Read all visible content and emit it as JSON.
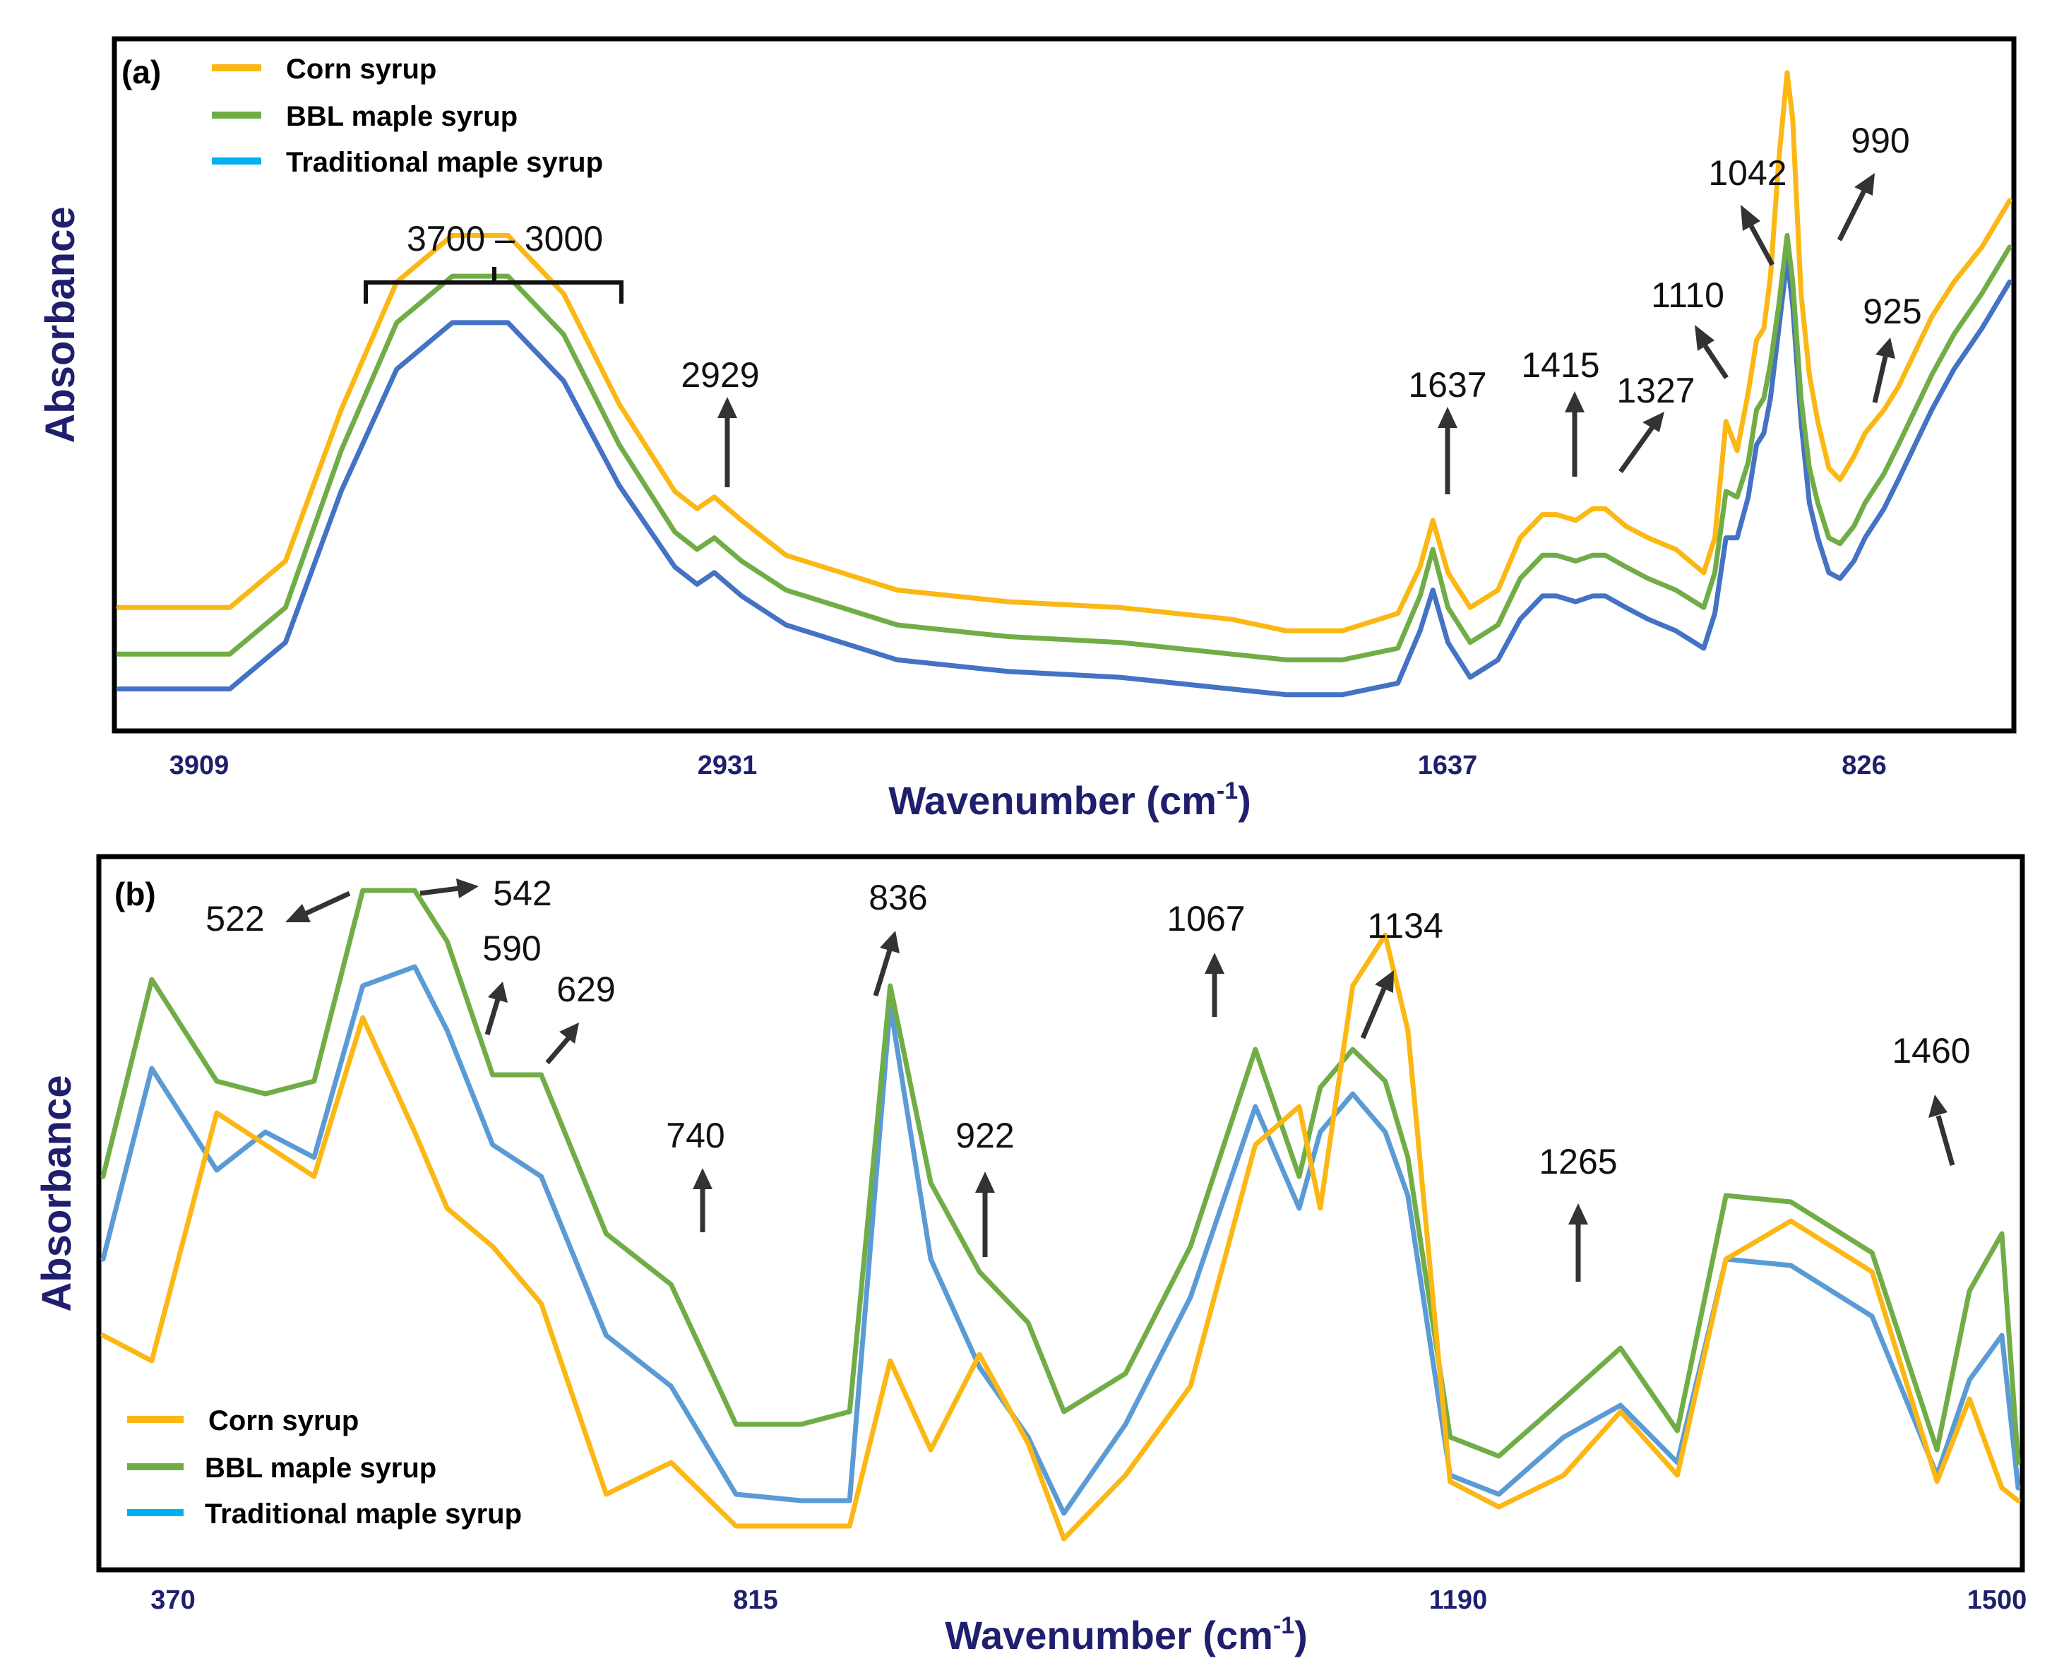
{
  "colors": {
    "corn": "#fbb714",
    "bbl": "#70ad47",
    "traditional_line_a": "#4472c4",
    "traditional_line_b": "#5b9bd5",
    "traditional_legend": "#00b0f0",
    "axis_text": "#1f1f6e"
  },
  "chart_data": [
    {
      "type": "line",
      "panel_label": "(a)",
      "ylabel": "Absorbance",
      "xlabel": "Wavenumber (cm",
      "xlabel_sup": "-1",
      "xlabel_close": ")",
      "x_ticks": [
        "3909",
        "2931",
        "1637",
        "826"
      ],
      "legend": [
        "Corn syrup",
        "BBL maple syrup",
        "Traditional maple syrup"
      ],
      "legend_position": "top-left",
      "grid": false,
      "x_direction": "decreasing",
      "xlim": [
        4000,
        600
      ],
      "y_units": "arbitrary",
      "series": [
        {
          "name": "Corn syrup",
          "x": [
            4000,
            3909,
            3800,
            3700,
            3600,
            3500,
            3400,
            3300,
            3200,
            3100,
            3000,
            2960,
            2929,
            2880,
            2800,
            2600,
            2400,
            2200,
            2000,
            1900,
            1800,
            1700,
            1660,
            1637,
            1610,
            1570,
            1520,
            1480,
            1440,
            1415,
            1380,
            1350,
            1327,
            1290,
            1250,
            1200,
            1150,
            1130,
            1110,
            1090,
            1070,
            1055,
            1042,
            1030,
            1015,
            1000,
            990,
            975,
            960,
            945,
            925,
            905,
            880,
            860,
            826,
            800,
            770,
            740,
            700,
            650,
            600
          ],
          "y": [
            0.08,
            0.08,
            0.08,
            0.16,
            0.42,
            0.64,
            0.72,
            0.72,
            0.62,
            0.43,
            0.28,
            0.25,
            0.27,
            0.23,
            0.17,
            0.11,
            0.09,
            0.08,
            0.06,
            0.04,
            0.04,
            0.07,
            0.15,
            0.23,
            0.14,
            0.08,
            0.11,
            0.2,
            0.24,
            0.24,
            0.23,
            0.25,
            0.25,
            0.22,
            0.2,
            0.18,
            0.14,
            0.2,
            0.4,
            0.35,
            0.45,
            0.54,
            0.56,
            0.65,
            0.85,
            1.0,
            0.92,
            0.62,
            0.48,
            0.4,
            0.32,
            0.3,
            0.34,
            0.38,
            0.42,
            0.46,
            0.52,
            0.58,
            0.64,
            0.7,
            0.78
          ]
        },
        {
          "name": "BBL maple syrup",
          "x": [
            4000,
            3909,
            3800,
            3700,
            3600,
            3500,
            3400,
            3300,
            3200,
            3100,
            3000,
            2960,
            2929,
            2880,
            2800,
            2600,
            2400,
            2200,
            2000,
            1900,
            1800,
            1700,
            1660,
            1637,
            1610,
            1570,
            1520,
            1480,
            1440,
            1415,
            1380,
            1350,
            1327,
            1290,
            1250,
            1200,
            1150,
            1130,
            1110,
            1090,
            1070,
            1055,
            1042,
            1030,
            1015,
            1000,
            990,
            975,
            960,
            945,
            925,
            905,
            880,
            860,
            826,
            800,
            770,
            740,
            700,
            650,
            600
          ],
          "y": [
            0.0,
            0.0,
            0.0,
            0.08,
            0.35,
            0.57,
            0.65,
            0.65,
            0.55,
            0.36,
            0.21,
            0.18,
            0.2,
            0.16,
            0.11,
            0.05,
            0.03,
            0.02,
            0.0,
            -0.01,
            -0.01,
            0.01,
            0.1,
            0.18,
            0.08,
            0.02,
            0.05,
            0.13,
            0.17,
            0.17,
            0.16,
            0.17,
            0.17,
            0.15,
            0.13,
            0.11,
            0.08,
            0.14,
            0.28,
            0.27,
            0.33,
            0.42,
            0.44,
            0.5,
            0.6,
            0.72,
            0.64,
            0.44,
            0.32,
            0.26,
            0.2,
            0.19,
            0.22,
            0.26,
            0.31,
            0.36,
            0.42,
            0.48,
            0.55,
            0.62,
            0.7
          ]
        },
        {
          "name": "Traditional maple syrup",
          "x": [
            4000,
            3909,
            3800,
            3700,
            3600,
            3500,
            3400,
            3300,
            3200,
            3100,
            3000,
            2960,
            2929,
            2880,
            2800,
            2600,
            2400,
            2200,
            2000,
            1900,
            1800,
            1700,
            1660,
            1637,
            1610,
            1570,
            1520,
            1480,
            1440,
            1415,
            1380,
            1350,
            1327,
            1290,
            1250,
            1200,
            1150,
            1130,
            1110,
            1090,
            1070,
            1055,
            1042,
            1030,
            1015,
            1000,
            990,
            975,
            960,
            945,
            925,
            905,
            880,
            860,
            826,
            800,
            770,
            740,
            700,
            650,
            600
          ],
          "y": [
            -0.06,
            -0.06,
            -0.06,
            0.02,
            0.28,
            0.49,
            0.57,
            0.57,
            0.47,
            0.29,
            0.15,
            0.12,
            0.14,
            0.1,
            0.05,
            -0.01,
            -0.03,
            -0.04,
            -0.06,
            -0.07,
            -0.07,
            -0.05,
            0.04,
            0.11,
            0.02,
            -0.04,
            -0.01,
            0.06,
            0.1,
            0.1,
            0.09,
            0.1,
            0.1,
            0.08,
            0.06,
            0.04,
            0.01,
            0.07,
            0.2,
            0.2,
            0.27,
            0.36,
            0.38,
            0.44,
            0.56,
            0.68,
            0.6,
            0.4,
            0.26,
            0.2,
            0.14,
            0.13,
            0.16,
            0.2,
            0.25,
            0.3,
            0.36,
            0.42,
            0.49,
            0.56,
            0.64
          ]
        }
      ],
      "annotations": [
        {
          "label": "3700 – 3000",
          "kind": "bracket",
          "x_from": 3700,
          "x_to": 3000
        },
        {
          "label": "2929",
          "kind": "arrow",
          "x": 2929
        },
        {
          "label": "1637",
          "kind": "arrow",
          "x": 1637
        },
        {
          "label": "1415",
          "kind": "arrow",
          "x": 1415
        },
        {
          "label": "1327",
          "kind": "arrow",
          "x": 1327
        },
        {
          "label": "1110",
          "kind": "arrow",
          "x": 1110
        },
        {
          "label": "1042",
          "kind": "arrow",
          "x": 1042
        },
        {
          "label": "990",
          "kind": "arrow",
          "x": 990
        },
        {
          "label": "925",
          "kind": "arrow",
          "x": 925
        }
      ]
    },
    {
      "type": "line",
      "panel_label": "(b)",
      "ylabel": "Absorbance",
      "xlabel": "Wavenumber (cm",
      "xlabel_sup": "-1",
      "xlabel_close": ")",
      "x_ticks": [
        "370",
        "815",
        "1190",
        "1500"
      ],
      "legend": [
        "Corn syrup",
        "BBL maple syrup",
        "Traditional maple syrup"
      ],
      "legend_position": "bottom-left",
      "grid": false,
      "xlim": [
        330,
        1510
      ],
      "y_units": "arbitrary",
      "series": [
        {
          "name": "Corn syrup",
          "x": [
            330,
            360,
            400,
            430,
            460,
            490,
            522,
            542,
            570,
            600,
            640,
            680,
            720,
            760,
            790,
            815,
            840,
            870,
            900,
            922,
            960,
            1000,
            1040,
            1067,
            1080,
            1100,
            1120,
            1134,
            1160,
            1190,
            1230,
            1265,
            1300,
            1330,
            1370,
            1420,
            1460,
            1480,
            1500,
            1510
          ],
          "y": [
            0.3,
            0.26,
            0.65,
            0.6,
            0.55,
            0.8,
            0.62,
            0.5,
            0.44,
            0.35,
            0.05,
            0.1,
            0.0,
            0.0,
            0.0,
            0.26,
            0.12,
            0.27,
            0.13,
            -0.02,
            0.08,
            0.22,
            0.6,
            0.66,
            0.5,
            0.85,
            0.93,
            0.78,
            0.07,
            0.03,
            0.08,
            0.18,
            0.08,
            0.42,
            0.48,
            0.4,
            0.07,
            0.2,
            0.06,
            0.04
          ]
        },
        {
          "name": "BBL maple syrup",
          "x": [
            330,
            360,
            400,
            430,
            460,
            490,
            522,
            542,
            570,
            600,
            640,
            680,
            720,
            760,
            790,
            815,
            840,
            870,
            900,
            922,
            960,
            1000,
            1040,
            1067,
            1080,
            1100,
            1120,
            1134,
            1160,
            1190,
            1230,
            1265,
            1300,
            1330,
            1370,
            1420,
            1460,
            1480,
            1500,
            1510
          ],
          "y": [
            0.55,
            0.86,
            0.7,
            0.68,
            0.7,
            1.0,
            1.0,
            0.92,
            0.71,
            0.71,
            0.46,
            0.38,
            0.16,
            0.16,
            0.18,
            0.85,
            0.54,
            0.4,
            0.32,
            0.18,
            0.24,
            0.44,
            0.75,
            0.55,
            0.69,
            0.75,
            0.7,
            0.58,
            0.14,
            0.11,
            0.2,
            0.28,
            0.15,
            0.52,
            0.51,
            0.43,
            0.12,
            0.37,
            0.46,
            0.1
          ]
        },
        {
          "name": "Traditional maple syrup",
          "x": [
            330,
            360,
            400,
            430,
            460,
            490,
            522,
            542,
            570,
            600,
            640,
            680,
            720,
            760,
            790,
            815,
            840,
            870,
            900,
            922,
            960,
            1000,
            1040,
            1067,
            1080,
            1100,
            1120,
            1134,
            1160,
            1190,
            1230,
            1265,
            1300,
            1330,
            1370,
            1420,
            1460,
            1480,
            1500,
            1510
          ],
          "y": [
            0.42,
            0.72,
            0.56,
            0.62,
            0.58,
            0.85,
            0.88,
            0.78,
            0.6,
            0.55,
            0.3,
            0.22,
            0.05,
            0.04,
            0.04,
            0.82,
            0.42,
            0.25,
            0.14,
            0.02,
            0.16,
            0.36,
            0.66,
            0.5,
            0.62,
            0.68,
            0.62,
            0.52,
            0.08,
            0.05,
            0.14,
            0.19,
            0.1,
            0.42,
            0.41,
            0.33,
            0.08,
            0.23,
            0.3,
            0.06
          ]
        }
      ],
      "annotations": [
        {
          "label": "522",
          "kind": "arrow",
          "x": 522
        },
        {
          "label": "542",
          "kind": "arrow",
          "x": 542
        },
        {
          "label": "590",
          "kind": "arrow",
          "x": 590
        },
        {
          "label": "629",
          "kind": "arrow",
          "x": 629
        },
        {
          "label": "740",
          "kind": "arrow",
          "x": 740
        },
        {
          "label": "836",
          "kind": "arrow",
          "x": 836
        },
        {
          "label": "922",
          "kind": "arrow",
          "x": 922
        },
        {
          "label": "1067",
          "kind": "arrow",
          "x": 1067
        },
        {
          "label": "1134",
          "kind": "arrow",
          "x": 1134
        },
        {
          "label": "1265",
          "kind": "arrow",
          "x": 1265
        },
        {
          "label": "1460",
          "kind": "arrow",
          "x": 1460
        }
      ]
    }
  ]
}
